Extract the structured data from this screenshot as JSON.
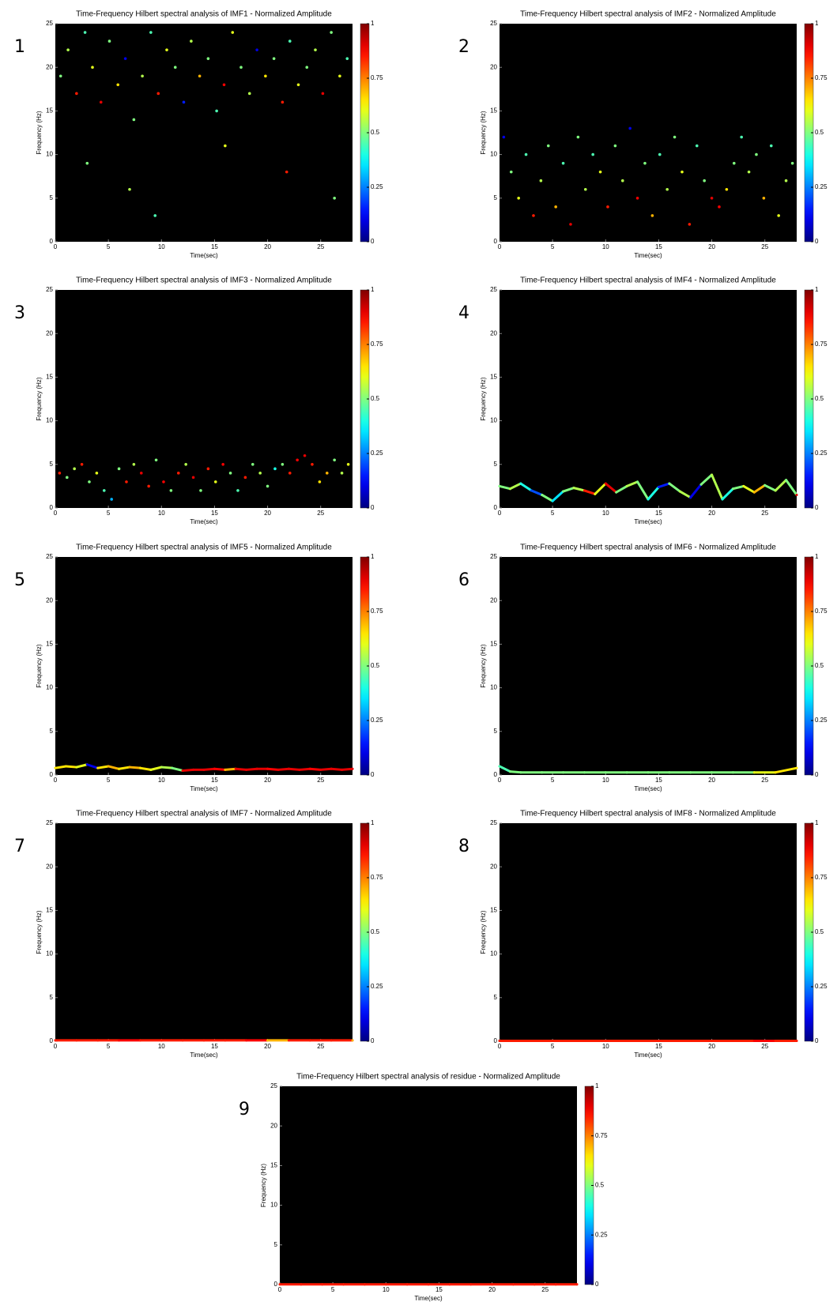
{
  "chart_data": [
    {
      "type": "scatter",
      "label": "1",
      "title": "Time-Frequency Hilbert spectral analysis of IMF1 - Normalized Amplitude",
      "xlabel": "Time(sec)",
      "ylabel": "Frequency (Hz)",
      "xlim": [
        0,
        28
      ],
      "ylim": [
        0,
        25
      ],
      "xticks": [
        0,
        5,
        10,
        15,
        20,
        25
      ],
      "yticks": [
        0,
        5,
        10,
        15,
        20,
        25
      ],
      "colormap": "jet",
      "clim": [
        0,
        1
      ],
      "cticks": [
        0,
        0.25,
        0.5,
        0.75,
        1
      ],
      "x": [
        0.5,
        1.2,
        2.0,
        2.8,
        3.5,
        4.3,
        5.1,
        5.9,
        6.6,
        7.4,
        8.2,
        9.0,
        9.7,
        10.5,
        11.3,
        12.1,
        12.8,
        13.6,
        14.4,
        15.2,
        15.9,
        16.7,
        17.5,
        18.3,
        19.0,
        19.8,
        20.6,
        21.4,
        22.1,
        22.9,
        23.7,
        24.5,
        25.2,
        26.0,
        26.8,
        27.5,
        3.0,
        7.0,
        9.4,
        16.0,
        21.8,
        26.3
      ],
      "y": [
        19,
        22,
        17,
        24,
        20,
        16,
        23,
        18,
        21,
        14,
        19,
        24,
        17,
        22,
        20,
        16,
        23,
        19,
        21,
        15,
        18,
        24,
        20,
        17,
        22,
        19,
        21,
        16,
        23,
        18,
        20,
        22,
        17,
        24,
        19,
        21,
        9,
        6,
        3,
        11,
        8,
        5
      ],
      "amplitude": [
        0.5,
        0.55,
        0.85,
        0.45,
        0.6,
        0.9,
        0.5,
        0.65,
        0.1,
        0.5,
        0.55,
        0.45,
        0.85,
        0.6,
        0.5,
        0.15,
        0.55,
        0.7,
        0.5,
        0.45,
        0.88,
        0.6,
        0.5,
        0.55,
        0.1,
        0.65,
        0.5,
        0.85,
        0.45,
        0.6,
        0.5,
        0.55,
        0.9,
        0.5,
        0.6,
        0.45,
        0.5,
        0.55,
        0.45,
        0.6,
        0.85,
        0.5
      ]
    },
    {
      "type": "scatter",
      "label": "2",
      "title": "Time-Frequency Hilbert spectral analysis of IMF2 - Normalized Amplitude",
      "xlabel": "Time(sec)",
      "ylabel": "Frequency (Hz)",
      "xlim": [
        0,
        28
      ],
      "ylim": [
        0,
        25
      ],
      "xticks": [
        0,
        5,
        10,
        15,
        20,
        25
      ],
      "yticks": [
        0,
        5,
        10,
        15,
        20,
        25
      ],
      "colormap": "jet",
      "clim": [
        0,
        1
      ],
      "cticks": [
        0,
        0.25,
        0.5,
        0.75,
        1
      ],
      "x": [
        0.4,
        1.1,
        1.8,
        2.5,
        3.2,
        3.9,
        4.6,
        5.3,
        6.0,
        6.7,
        7.4,
        8.1,
        8.8,
        9.5,
        10.2,
        10.9,
        11.6,
        12.3,
        13.0,
        13.7,
        14.4,
        15.1,
        15.8,
        16.5,
        17.2,
        17.9,
        18.6,
        19.3,
        20.0,
        20.7,
        21.4,
        22.1,
        22.8,
        23.5,
        24.2,
        24.9,
        25.6,
        26.3,
        27.0,
        27.6
      ],
      "y": [
        12,
        8,
        5,
        10,
        3,
        7,
        11,
        4,
        9,
        2,
        12,
        6,
        10,
        8,
        4,
        11,
        7,
        13,
        5,
        9,
        3,
        10,
        6,
        12,
        8,
        2,
        11,
        7,
        5,
        4,
        6,
        9,
        12,
        8,
        10,
        5,
        11,
        3,
        7,
        9
      ],
      "amplitude": [
        0.1,
        0.5,
        0.6,
        0.45,
        0.85,
        0.55,
        0.5,
        0.7,
        0.45,
        0.9,
        0.5,
        0.55,
        0.45,
        0.6,
        0.85,
        0.5,
        0.55,
        0.1,
        0.88,
        0.5,
        0.7,
        0.45,
        0.55,
        0.5,
        0.6,
        0.85,
        0.45,
        0.5,
        0.9,
        0.88,
        0.65,
        0.5,
        0.45,
        0.55,
        0.5,
        0.7,
        0.45,
        0.6,
        0.55,
        0.5
      ]
    },
    {
      "type": "scatter",
      "label": "3",
      "title": "Time-Frequency Hilbert spectral analysis of IMF3 - Normalized Amplitude",
      "xlabel": "Time(sec)",
      "ylabel": "Frequency (Hz)",
      "xlim": [
        0,
        28
      ],
      "ylim": [
        0,
        25
      ],
      "xticks": [
        0,
        5,
        10,
        15,
        20,
        25
      ],
      "yticks": [
        0,
        5,
        10,
        15,
        20,
        25
      ],
      "colormap": "jet",
      "clim": [
        0,
        1
      ],
      "cticks": [
        0,
        0.25,
        0.5,
        0.75,
        1
      ],
      "x": [
        0.4,
        1.1,
        1.8,
        2.5,
        3.2,
        3.9,
        4.6,
        5.3,
        6.0,
        6.7,
        7.4,
        8.1,
        8.8,
        9.5,
        10.2,
        10.9,
        11.6,
        12.3,
        13.0,
        13.7,
        14.4,
        15.1,
        15.8,
        16.5,
        17.2,
        17.9,
        18.6,
        19.3,
        20.0,
        20.7,
        21.4,
        22.1,
        22.8,
        23.5,
        24.2,
        24.9,
        25.6,
        26.3,
        27.0,
        27.6
      ],
      "y": [
        4,
        3.5,
        4.5,
        5,
        3,
        4,
        2,
        1,
        4.5,
        3,
        5,
        4,
        2.5,
        5.5,
        3,
        2,
        4,
        5,
        3.5,
        2,
        4.5,
        3,
        5,
        4,
        2,
        3.5,
        5,
        4,
        2.5,
        4.5,
        5,
        4,
        5.5,
        6,
        5,
        3,
        4,
        5.5,
        4,
        5
      ],
      "amplitude": [
        0.85,
        0.5,
        0.55,
        0.85,
        0.5,
        0.6,
        0.45,
        0.3,
        0.5,
        0.85,
        0.55,
        0.9,
        0.85,
        0.5,
        0.88,
        0.5,
        0.85,
        0.55,
        0.9,
        0.5,
        0.85,
        0.6,
        0.88,
        0.5,
        0.45,
        0.85,
        0.5,
        0.55,
        0.5,
        0.4,
        0.5,
        0.85,
        0.88,
        0.9,
        0.85,
        0.65,
        0.7,
        0.5,
        0.55,
        0.6
      ]
    },
    {
      "type": "line",
      "label": "4",
      "title": "Time-Frequency Hilbert spectral analysis of IMF4 - Normalized Amplitude",
      "xlabel": "Time(sec)",
      "ylabel": "Frequency (Hz)",
      "xlim": [
        0,
        28
      ],
      "ylim": [
        0,
        25
      ],
      "xticks": [
        0,
        5,
        10,
        15,
        20,
        25
      ],
      "yticks": [
        0,
        5,
        10,
        15,
        20,
        25
      ],
      "colormap": "jet",
      "clim": [
        0,
        1
      ],
      "cticks": [
        0,
        0.25,
        0.5,
        0.75,
        1
      ],
      "x": [
        0,
        1,
        2,
        3,
        4,
        5,
        6,
        7,
        8,
        9,
        10,
        11,
        12,
        13,
        14,
        15,
        16,
        17,
        18,
        19,
        20,
        21,
        22,
        23,
        24,
        25,
        26,
        27,
        28
      ],
      "y": [
        2.5,
        2.2,
        2.8,
        2.0,
        1.5,
        0.8,
        1.9,
        2.3,
        2.0,
        1.6,
        2.8,
        1.8,
        2.5,
        3.0,
        1.0,
        2.4,
        2.8,
        1.9,
        1.2,
        2.7,
        3.8,
        1.0,
        2.2,
        2.5,
        1.8,
        2.6,
        2.0,
        3.2,
        1.5
      ],
      "amplitude": [
        0.5,
        0.55,
        0.4,
        0.2,
        0.5,
        0.35,
        0.5,
        0.55,
        0.85,
        0.6,
        0.9,
        0.5,
        0.55,
        0.5,
        0.4,
        0.15,
        0.5,
        0.55,
        0.1,
        0.5,
        0.55,
        0.4,
        0.5,
        0.6,
        0.7,
        0.5,
        0.55,
        0.5,
        0.9
      ]
    },
    {
      "type": "line",
      "label": "5",
      "title": "Time-Frequency Hilbert spectral analysis of IMF5 - Normalized Amplitude",
      "xlabel": "Time(sec)",
      "ylabel": "Frequency (Hz)",
      "xlim": [
        0,
        28
      ],
      "ylim": [
        0,
        25
      ],
      "xticks": [
        0,
        5,
        10,
        15,
        20,
        25
      ],
      "yticks": [
        0,
        5,
        10,
        15,
        20,
        25
      ],
      "colormap": "jet",
      "clim": [
        0,
        1
      ],
      "cticks": [
        0,
        0.25,
        0.5,
        0.75,
        1
      ],
      "x": [
        0,
        1,
        2,
        3,
        4,
        5,
        6,
        7,
        8,
        9,
        10,
        11,
        12,
        13,
        14,
        15,
        16,
        17,
        18,
        19,
        20,
        21,
        22,
        23,
        24,
        25,
        26,
        27,
        28
      ],
      "y": [
        0.8,
        1.0,
        0.9,
        1.2,
        0.8,
        1.0,
        0.7,
        0.9,
        0.8,
        0.6,
        0.9,
        0.8,
        0.5,
        0.6,
        0.6,
        0.7,
        0.6,
        0.7,
        0.6,
        0.7,
        0.7,
        0.6,
        0.7,
        0.6,
        0.7,
        0.6,
        0.7,
        0.6,
        0.7
      ],
      "amplitude": [
        0.65,
        0.65,
        0.6,
        0.1,
        0.65,
        0.7,
        0.65,
        0.7,
        0.65,
        0.6,
        0.55,
        0.5,
        0.9,
        0.9,
        0.9,
        0.88,
        0.7,
        0.9,
        0.9,
        0.9,
        0.88,
        0.9,
        0.9,
        0.9,
        0.88,
        0.9,
        0.9,
        0.9,
        0.9
      ]
    },
    {
      "type": "line",
      "label": "6",
      "title": "Time-Frequency Hilbert spectral analysis of IMF6 - Normalized Amplitude",
      "xlabel": "Time(sec)",
      "ylabel": "Frequency (Hz)",
      "xlim": [
        0,
        28
      ],
      "ylim": [
        0,
        25
      ],
      "xticks": [
        0,
        5,
        10,
        15,
        20,
        25
      ],
      "yticks": [
        0,
        5,
        10,
        15,
        20,
        25
      ],
      "colormap": "jet",
      "clim": [
        0,
        1
      ],
      "cticks": [
        0,
        0.25,
        0.5,
        0.75,
        1
      ],
      "x": [
        0,
        1,
        2,
        4,
        6,
        8,
        10,
        12,
        14,
        16,
        18,
        20,
        22,
        24,
        26,
        28
      ],
      "y": [
        1.0,
        0.4,
        0.3,
        0.3,
        0.3,
        0.3,
        0.3,
        0.3,
        0.3,
        0.3,
        0.3,
        0.3,
        0.3,
        0.3,
        0.3,
        0.8
      ],
      "amplitude": [
        0.45,
        0.5,
        0.5,
        0.5,
        0.5,
        0.5,
        0.5,
        0.5,
        0.5,
        0.5,
        0.5,
        0.5,
        0.5,
        0.6,
        0.65,
        0.65
      ]
    },
    {
      "type": "line",
      "label": "7",
      "title": "Time-Frequency Hilbert spectral analysis of IMF7 - Normalized Amplitude",
      "xlabel": "Time(sec)",
      "ylabel": "Frequency (Hz)",
      "xlim": [
        0,
        28
      ],
      "ylim": [
        0,
        25
      ],
      "xticks": [
        0,
        5,
        10,
        15,
        20,
        25
      ],
      "yticks": [
        0,
        5,
        10,
        15,
        20,
        25
      ],
      "colormap": "jet",
      "clim": [
        0,
        1
      ],
      "cticks": [
        0,
        0.25,
        0.5,
        0.75,
        1
      ],
      "x": [
        0,
        2,
        4,
        6,
        8,
        10,
        12,
        14,
        16,
        18,
        20,
        22,
        24,
        26,
        28
      ],
      "y": [
        0.1,
        0.1,
        0.1,
        0.1,
        0.1,
        0.1,
        0.1,
        0.1,
        0.1,
        0.1,
        0.1,
        0.1,
        0.1,
        0.1,
        0.1
      ],
      "amplitude": [
        0.85,
        0.85,
        0.85,
        0.88,
        0.85,
        0.85,
        0.85,
        0.85,
        0.85,
        0.88,
        0.7,
        0.85,
        0.85,
        0.85,
        0.7
      ]
    },
    {
      "type": "line",
      "label": "8",
      "title": "Time-Frequency Hilbert spectral analysis of IMF8 - Normalized Amplitude",
      "xlabel": "Time(sec)",
      "ylabel": "Frequency (Hz)",
      "xlim": [
        0,
        28
      ],
      "ylim": [
        0,
        25
      ],
      "xticks": [
        0,
        5,
        10,
        15,
        20,
        25
      ],
      "yticks": [
        0,
        5,
        10,
        15,
        20,
        25
      ],
      "colormap": "jet",
      "clim": [
        0,
        1
      ],
      "cticks": [
        0,
        0.25,
        0.5,
        0.75,
        1
      ],
      "x": [
        0,
        2,
        4,
        6,
        8,
        10,
        12,
        14,
        16,
        18,
        20,
        22,
        24,
        26,
        28
      ],
      "y": [
        0.05,
        0.05,
        0.05,
        0.05,
        0.05,
        0.05,
        0.05,
        0.05,
        0.05,
        0.05,
        0.05,
        0.05,
        0.05,
        0.05,
        0.05
      ],
      "amplitude": [
        0.85,
        0.85,
        0.85,
        0.85,
        0.85,
        0.85,
        0.85,
        0.85,
        0.85,
        0.85,
        0.85,
        0.85,
        0.88,
        0.85,
        0.85
      ]
    },
    {
      "type": "line",
      "label": "9",
      "title": "Time-Frequency Hilbert spectral analysis of residue - Normalized Amplitude",
      "xlabel": "Time(sec)",
      "ylabel": "Frequency (Hz)",
      "xlim": [
        0,
        28
      ],
      "ylim": [
        0,
        25
      ],
      "xticks": [
        0,
        5,
        10,
        15,
        20,
        25
      ],
      "yticks": [
        0,
        5,
        10,
        15,
        20,
        25
      ],
      "colormap": "jet",
      "clim": [
        0,
        1
      ],
      "cticks": [
        0,
        0.25,
        0.5,
        0.75,
        1
      ],
      "x": [
        0,
        2,
        4,
        6,
        8,
        10,
        12,
        14,
        16,
        18,
        20,
        22,
        24,
        26,
        28
      ],
      "y": [
        0.02,
        0.02,
        0.02,
        0.02,
        0.02,
        0.02,
        0.02,
        0.02,
        0.02,
        0.02,
        0.02,
        0.02,
        0.02,
        0.02,
        0.02
      ],
      "amplitude": [
        0.85,
        0.85,
        0.85,
        0.85,
        0.85,
        0.85,
        0.85,
        0.85,
        0.85,
        0.85,
        0.85,
        0.85,
        0.85,
        0.85,
        0.85
      ]
    }
  ]
}
